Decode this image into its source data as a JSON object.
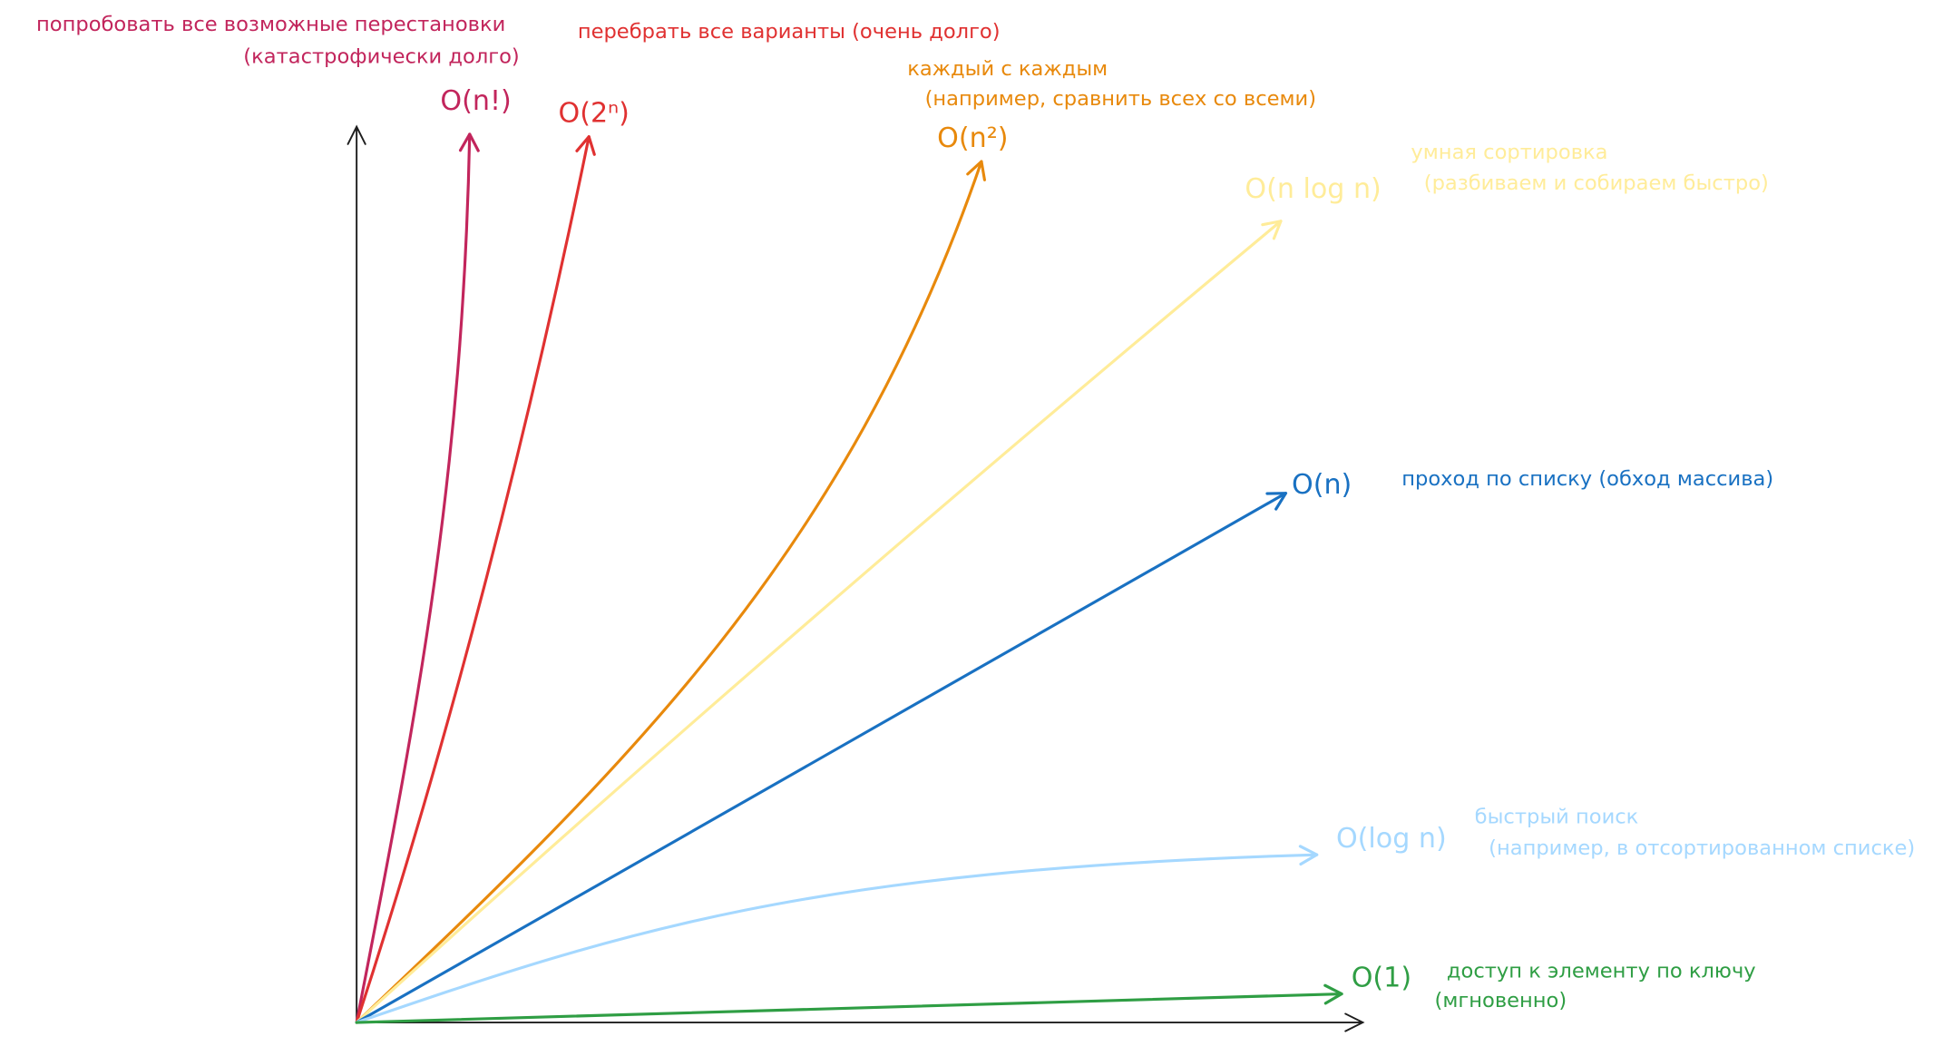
{
  "curves": [
    {
      "notation": "O(n!)",
      "description": [
        "попробовать все возможные перестановки",
        "(катастрофически долго)"
      ]
    },
    {
      "notation": "O(2ⁿ)",
      "description": [
        "перебрать все варианты (очень долго)"
      ]
    },
    {
      "notation": "O(n²)",
      "description": [
        "каждый с каждым",
        "(например, сравнить всех со всеми)"
      ]
    },
    {
      "notation": "O(n log n)",
      "description": [
        "умная сортировка",
        "(разбиваем и собираем быстро)"
      ]
    },
    {
      "notation": "O(n)",
      "description": [
        "проход по списку (обход массива)"
      ]
    },
    {
      "notation": "O(log n)",
      "description": [
        "быстрый поиск",
        "(например, в отсортированном списке)"
      ]
    },
    {
      "notation": "O(1)",
      "description": [
        "доступ к элементу по ключу",
        "(мгновенно)"
      ]
    }
  ]
}
